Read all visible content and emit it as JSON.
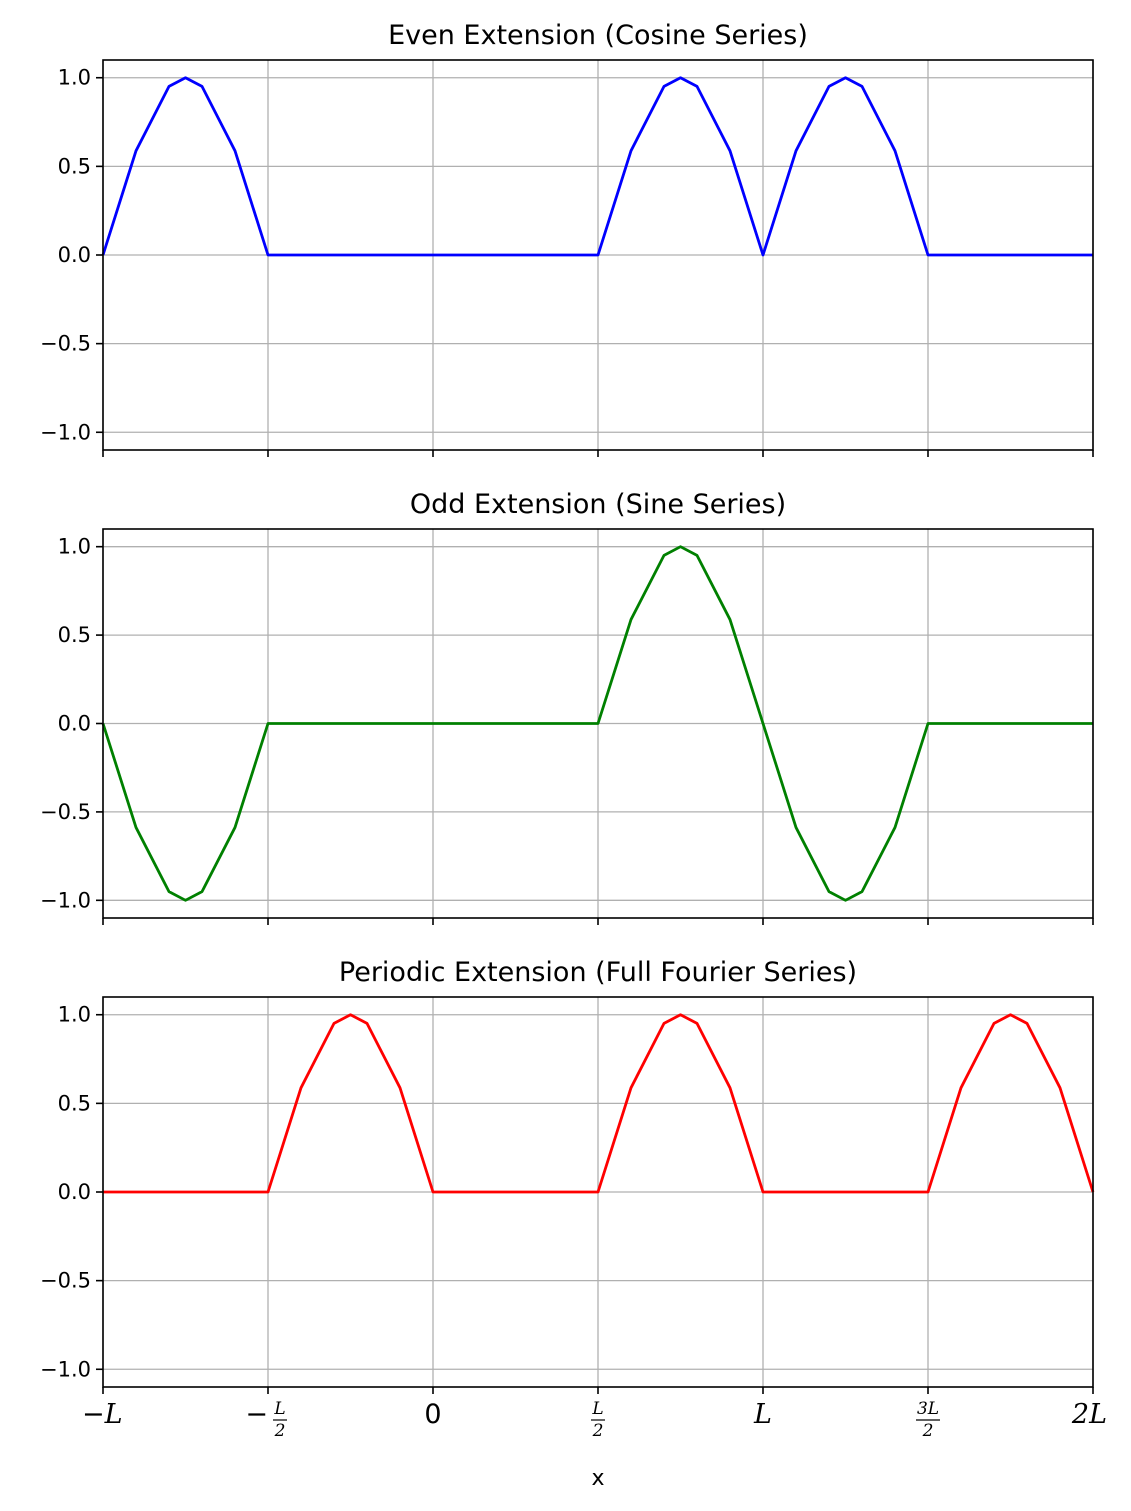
{
  "chart_data": [
    {
      "type": "line",
      "title": "Even Extension (Cosine Series)",
      "color": "#0000ff",
      "xlim": [
        -1,
        2
      ],
      "ylim": [
        -1.1,
        1.1
      ],
      "grid": true,
      "yticks": [
        -1.0,
        -0.5,
        0.0,
        0.5,
        1.0
      ],
      "ytick_labels": [
        "−1.0",
        "−0.5",
        "0.0",
        "0.5",
        "1.0"
      ],
      "series": [
        {
          "x": [
            -1.0,
            -0.9,
            -0.8,
            -0.75,
            -0.7,
            -0.6,
            -0.5,
            -0.25,
            0.0,
            0.25,
            0.5,
            0.6,
            0.7,
            0.75,
            0.8,
            0.9,
            1.0,
            1.1,
            1.2,
            1.25,
            1.3,
            1.4,
            1.5,
            1.75,
            2.0
          ],
          "y": [
            0.0,
            0.5878,
            0.9511,
            1.0,
            0.9511,
            0.5878,
            0.0,
            0.0,
            0.0,
            0.0,
            0.0,
            0.5878,
            0.9511,
            1.0,
            0.9511,
            0.5878,
            0.0,
            0.5878,
            0.9511,
            1.0,
            0.9511,
            0.5878,
            0.0,
            0.0,
            0.0
          ]
        }
      ]
    },
    {
      "type": "line",
      "title": "Odd Extension (Sine Series)",
      "color": "#008000",
      "xlim": [
        -1,
        2
      ],
      "ylim": [
        -1.1,
        1.1
      ],
      "grid": true,
      "yticks": [
        -1.0,
        -0.5,
        0.0,
        0.5,
        1.0
      ],
      "ytick_labels": [
        "−1.0",
        "−0.5",
        "0.0",
        "0.5",
        "1.0"
      ],
      "series": [
        {
          "x": [
            -1.0,
            -0.9,
            -0.8,
            -0.75,
            -0.7,
            -0.6,
            -0.5,
            -0.25,
            0.0,
            0.25,
            0.5,
            0.6,
            0.7,
            0.75,
            0.8,
            0.9,
            1.0,
            1.1,
            1.2,
            1.25,
            1.3,
            1.4,
            1.5,
            1.75,
            2.0
          ],
          "y": [
            0.0,
            -0.5878,
            -0.9511,
            -1.0,
            -0.9511,
            -0.5878,
            0.0,
            0.0,
            0.0,
            0.0,
            0.0,
            0.5878,
            0.9511,
            1.0,
            0.9511,
            0.5878,
            0.0,
            -0.5878,
            -0.9511,
            -1.0,
            -0.9511,
            -0.5878,
            0.0,
            0.0,
            0.0
          ]
        }
      ]
    },
    {
      "type": "line",
      "title": "Periodic Extension (Full Fourier Series)",
      "color": "#ff0000",
      "xlim": [
        -1,
        2
      ],
      "ylim": [
        -1.1,
        1.1
      ],
      "grid": true,
      "xlabel": "x",
      "yticks": [
        -1.0,
        -0.5,
        0.0,
        0.5,
        1.0
      ],
      "ytick_labels": [
        "−1.0",
        "−0.5",
        "0.0",
        "0.5",
        "1.0"
      ],
      "series": [
        {
          "x": [
            -1.0,
            -0.75,
            -0.5,
            -0.4,
            -0.3,
            -0.25,
            -0.2,
            -0.1,
            0.0,
            0.25,
            0.5,
            0.6,
            0.7,
            0.75,
            0.8,
            0.9,
            1.0,
            1.25,
            1.5,
            1.6,
            1.7,
            1.75,
            1.8,
            1.9,
            2.0
          ],
          "y": [
            0.0,
            0.0,
            0.0,
            0.5878,
            0.9511,
            1.0,
            0.9511,
            0.5878,
            0.0,
            0.0,
            0.0,
            0.5878,
            0.9511,
            1.0,
            0.9511,
            0.5878,
            0.0,
            0.0,
            0.0,
            0.5878,
            0.9511,
            1.0,
            0.9511,
            0.5878,
            0.0
          ]
        }
      ]
    }
  ],
  "xticks": [
    {
      "value": -1.0,
      "kind": "simple",
      "sign": "−",
      "text": "L"
    },
    {
      "value": -0.5,
      "kind": "frac",
      "sign": "−",
      "num": "L",
      "den": "2"
    },
    {
      "value": 0.0,
      "kind": "plain",
      "text": "0"
    },
    {
      "value": 0.5,
      "kind": "frac",
      "sign": "",
      "num": "L",
      "den": "2"
    },
    {
      "value": 1.0,
      "kind": "simple",
      "sign": "",
      "text": "L"
    },
    {
      "value": 1.5,
      "kind": "frac",
      "sign": "",
      "num": "3L",
      "den": "2"
    },
    {
      "value": 2.0,
      "kind": "simple",
      "sign": "",
      "text": "2L"
    }
  ]
}
